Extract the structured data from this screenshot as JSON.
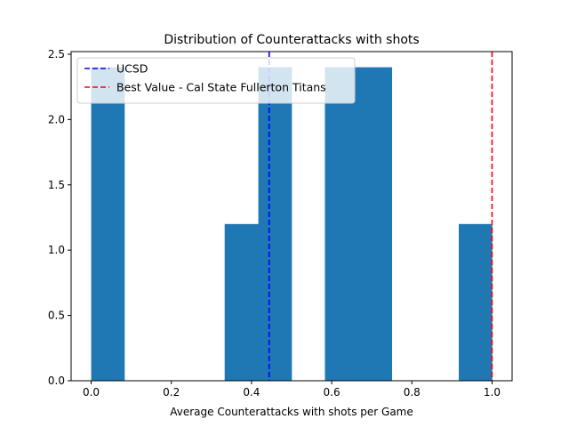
{
  "chart_data": {
    "type": "bar",
    "title": "Distribution of Counterattacks with shots",
    "xlabel": "Average Counterattacks with shots per Game",
    "ylabel": "",
    "xlim": [
      -0.05,
      1.05
    ],
    "ylim": [
      0,
      2.52
    ],
    "x_ticks": [
      "0.0",
      "0.2",
      "0.4",
      "0.6",
      "0.8",
      "1.0"
    ],
    "x_tick_values": [
      0.0,
      0.2,
      0.4,
      0.6,
      0.8,
      1.0
    ],
    "y_ticks": [
      "0.0",
      "0.5",
      "1.0",
      "1.5",
      "2.0",
      "2.5"
    ],
    "y_tick_values": [
      0.0,
      0.5,
      1.0,
      1.5,
      2.0,
      2.5
    ],
    "bins": [
      {
        "start": 0.0,
        "end": 0.083,
        "value": 2.4
      },
      {
        "start": 0.083,
        "end": 0.167,
        "value": 0
      },
      {
        "start": 0.167,
        "end": 0.25,
        "value": 0
      },
      {
        "start": 0.25,
        "end": 0.333,
        "value": 0
      },
      {
        "start": 0.333,
        "end": 0.417,
        "value": 1.2
      },
      {
        "start": 0.417,
        "end": 0.5,
        "value": 2.4
      },
      {
        "start": 0.5,
        "end": 0.583,
        "value": 0
      },
      {
        "start": 0.583,
        "end": 0.667,
        "value": 2.4
      },
      {
        "start": 0.667,
        "end": 0.75,
        "value": 2.4
      },
      {
        "start": 0.75,
        "end": 0.833,
        "value": 0
      },
      {
        "start": 0.833,
        "end": 0.917,
        "value": 0
      },
      {
        "start": 0.917,
        "end": 1.0,
        "value": 1.2
      }
    ],
    "bar_color": "#1f77b4",
    "reference_lines": [
      {
        "label": "UCSD",
        "x": 0.444,
        "color": "#0000ff"
      },
      {
        "label": "Best Value - Cal State Fullerton Titans",
        "x": 1.0,
        "color": "#ff0000"
      }
    ],
    "legend_position": "top-left",
    "grid": false
  }
}
